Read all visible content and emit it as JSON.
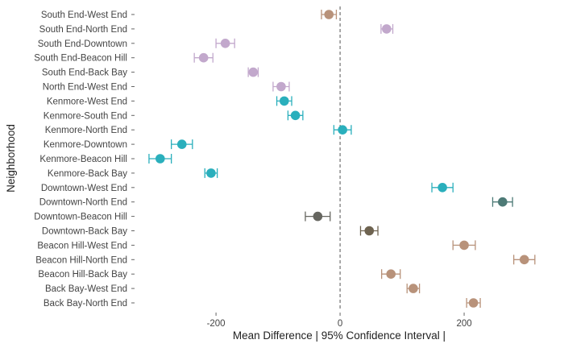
{
  "chart_data": {
    "type": "scatter",
    "subtype": "errorbar",
    "title": "",
    "xlabel": "Mean Difference | 95% Confidence Interval |",
    "ylabel": "Neighborhood",
    "xlim": [
      -330,
      335
    ],
    "xticks": [
      -200,
      0,
      200
    ],
    "reference_line": 0,
    "grid": false,
    "legend": "none",
    "points": [
      {
        "label": "South End-West End",
        "mean": -18,
        "lo": -30,
        "hi": -6,
        "color": "#b8927a"
      },
      {
        "label": "South End-North End",
        "mean": 75,
        "lo": 66,
        "hi": 85,
        "color": "#c2a8cc"
      },
      {
        "label": "South End-Downtown",
        "mean": -185,
        "lo": -200,
        "hi": -170,
        "color": "#c2a8cc"
      },
      {
        "label": "South End-Beacon Hill",
        "mean": -220,
        "lo": -235,
        "hi": -205,
        "color": "#c2a8cc"
      },
      {
        "label": "South End-Back Bay",
        "mean": -140,
        "lo": -148,
        "hi": -132,
        "color": "#c2a8cc"
      },
      {
        "label": "North End-West End",
        "mean": -95,
        "lo": -108,
        "hi": -82,
        "color": "#c2a8cc"
      },
      {
        "label": "Kenmore-West End",
        "mean": -90,
        "lo": -102,
        "hi": -78,
        "color": "#2aafbc"
      },
      {
        "label": "Kenmore-South End",
        "mean": -72,
        "lo": -84,
        "hi": -60,
        "color": "#2aafbc"
      },
      {
        "label": "Kenmore-North End",
        "mean": 4,
        "lo": -10,
        "hi": 18,
        "color": "#2aafbc"
      },
      {
        "label": "Kenmore-Downtown",
        "mean": -255,
        "lo": -272,
        "hi": -238,
        "color": "#2aafbc"
      },
      {
        "label": "Kenmore-Beacon Hill",
        "mean": -290,
        "lo": -308,
        "hi": -272,
        "color": "#2aafbc"
      },
      {
        "label": "Kenmore-Back Bay",
        "mean": -208,
        "lo": -218,
        "hi": -198,
        "color": "#2aafbc"
      },
      {
        "label": "Downtown-West End",
        "mean": 165,
        "lo": 148,
        "hi": 182,
        "color": "#2aafbc"
      },
      {
        "label": "Downtown-North End",
        "mean": 262,
        "lo": 246,
        "hi": 278,
        "color": "#4d7a76"
      },
      {
        "label": "Downtown-Beacon Hill",
        "mean": -36,
        "lo": -56,
        "hi": -16,
        "color": "#666660"
      },
      {
        "label": "Downtown-Back Bay",
        "mean": 47,
        "lo": 33,
        "hi": 61,
        "color": "#6e6350"
      },
      {
        "label": "Beacon Hill-West End",
        "mean": 200,
        "lo": 182,
        "hi": 218,
        "color": "#b8927a"
      },
      {
        "label": "Beacon Hill-North End",
        "mean": 297,
        "lo": 280,
        "hi": 314,
        "color": "#b8927a"
      },
      {
        "label": "Beacon Hill-Back Bay",
        "mean": 82,
        "lo": 67,
        "hi": 97,
        "color": "#b8927a"
      },
      {
        "label": "Back Bay-West End",
        "mean": 118,
        "lo": 108,
        "hi": 128,
        "color": "#b8927a"
      },
      {
        "label": "Back Bay-North End",
        "mean": 215,
        "lo": 204,
        "hi": 226,
        "color": "#b8927a"
      }
    ]
  }
}
